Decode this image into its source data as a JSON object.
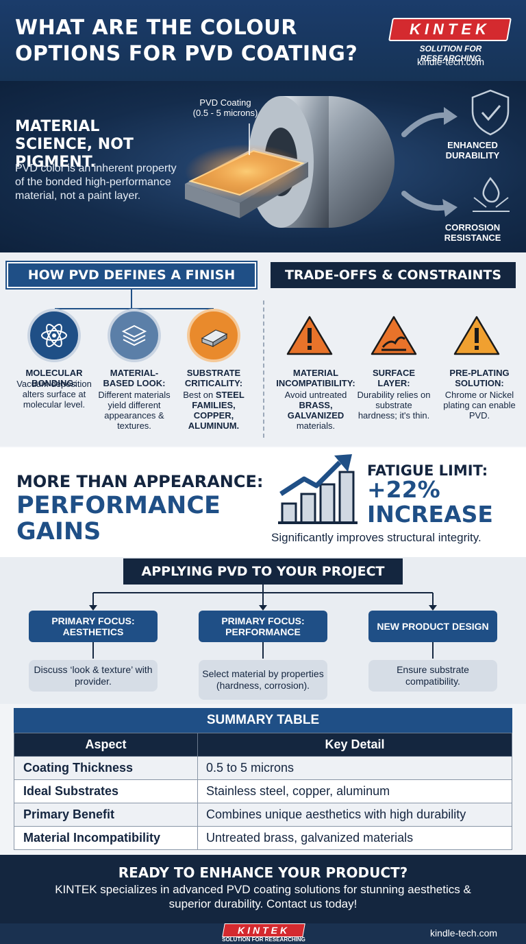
{
  "header": {
    "title": "WHAT ARE THE COLOUR OPTIONS FOR PVD COATING?",
    "logo_text": "KINTEK",
    "logo_tagline": "SOLUTION FOR RESEARCHING",
    "website": "kindle-tech.com"
  },
  "hero": {
    "headline": "MATERIAL SCIENCE, NOT PIGMENT.",
    "text": "PVD color is an inherent property of the bonded high-performance material, not a paint layer.",
    "coating_label": "PVD Coating",
    "coating_thickness": "(0.5 - 5 microns)",
    "benefits": [
      {
        "label": "ENHANCED DURABILITY",
        "icon": "shield-check-icon"
      },
      {
        "label": "CORROSION RESISTANCE",
        "icon": "water-drop-icon"
      }
    ]
  },
  "finish": {
    "heading": "HOW PVD DEFINES A FINISH",
    "items": [
      {
        "title": "MOLECULAR BONDING:",
        "text": "Vacuum deposition alters surface at molecular level.",
        "icon": "atom-icon"
      },
      {
        "title": "MATERIAL-BASED LOOK:",
        "text": "Different materials yield different appearances & textures.",
        "icon": "layers-icon"
      },
      {
        "title": "SUBSTRATE CRITICALITY:",
        "text_prefix": "Best on ",
        "text_bold": "STEEL FAMILIES, COPPER, ALUMINUM.",
        "icon": "metal-bar-icon"
      }
    ]
  },
  "tradeoffs": {
    "heading": "TRADE-OFFS & CONSTRAINTS",
    "items": [
      {
        "title": "MATERIAL INCOMPATIBILITY:",
        "text_prefix": "Avoid untreated ",
        "text_bold": "BRASS, GALVANIZED",
        "text_suffix": " materials.",
        "icon": "warning-icon"
      },
      {
        "title": "SURFACE LAYER:",
        "text": "Durability relies on substrate hardness; it's thin.",
        "icon": "warning-crack-icon"
      },
      {
        "title": "PRE-PLATING SOLUTION:",
        "text": "Chrome or Nickel plating can enable PVD.",
        "icon": "warning-icon"
      }
    ]
  },
  "performance": {
    "line1": "MORE THAN APPEARANCE:",
    "line2": "PERFORMANCE GAINS",
    "metric_label": "FATIGUE LIMIT:",
    "metric_value": "+22% INCREASE",
    "note": "Significantly improves structural integrity.",
    "icon": "growth-chart-icon"
  },
  "applying": {
    "heading": "APPLYING PVD TO YOUR PROJECT",
    "items": [
      {
        "focus": "PRIMARY FOCUS: AESTHETICS",
        "desc": "Discuss ‘look & texture’ with provider."
      },
      {
        "focus": "PRIMARY FOCUS: PERFORMANCE",
        "desc": "Select material by properties (hardness, corrosion)."
      },
      {
        "focus": "NEW PRODUCT DESIGN",
        "desc": "Ensure substrate compatibility."
      }
    ]
  },
  "summary": {
    "title": "SUMMARY TABLE",
    "headers": [
      "Aspect",
      "Key Detail"
    ],
    "rows": [
      {
        "aspect": "Coating Thickness",
        "detail": "0.5 to 5 microns"
      },
      {
        "aspect": "Ideal Substrates",
        "detail": "Stainless steel, copper, aluminum"
      },
      {
        "aspect": "Primary Benefit",
        "detail": "Combines unique aesthetics with high durability"
      },
      {
        "aspect": "Material Incompatibility",
        "detail": "Untreated brass, galvanized materials"
      }
    ]
  },
  "cta": {
    "title": "READY TO ENHANCE YOUR PRODUCT?",
    "text": "KINTEK specializes in advanced PVD coating solutions for stunning aesthetics & superior durability. Contact us today!"
  },
  "footer": {
    "logo_text": "KINTEK",
    "tagline": "SOLUTION FOR RESEARCHING",
    "website": "kindle-tech.com"
  },
  "colors": {
    "navy": "#14263f",
    "blue": "#1f4f86",
    "brand_red": "#d42a2f",
    "warning_orange": "#e8732a",
    "accent_orange": "#f0a030"
  }
}
